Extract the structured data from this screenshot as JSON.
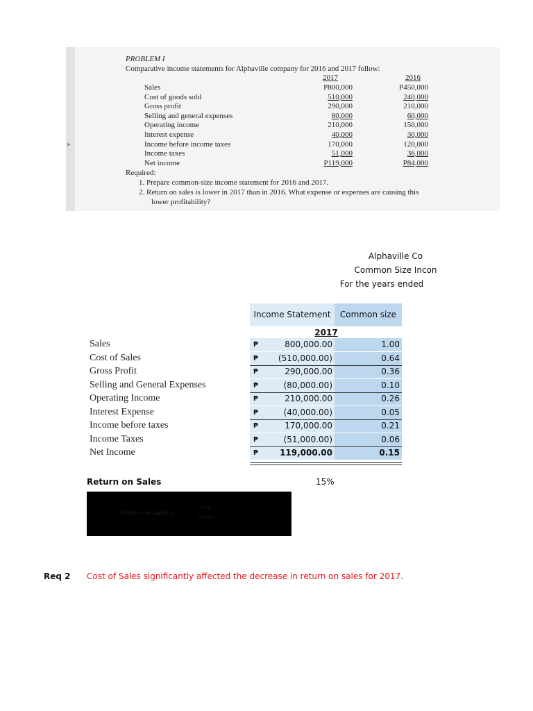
{
  "problem": {
    "title": "PROBLEM I",
    "intro": "Comparative income statements for Alphaville company for 2016 and 2017 follow:",
    "col_2017": "2017",
    "col_2016": "2016",
    "rows": [
      {
        "label": "Sales",
        "y2017": "P800,000",
        "y2016": "P450,000"
      },
      {
        "label": "Cost of goods sold",
        "y2017": "510,000",
        "y2016": "240,000"
      },
      {
        "label": "Gross profit",
        "y2017": "290,000",
        "y2016": "210,000"
      },
      {
        "label": "Selling and general expenses",
        "y2017": "80,000",
        "y2016": "60,000"
      },
      {
        "label": "Operating income",
        "y2017": "210,000",
        "y2016": "150,000"
      },
      {
        "label": "Interest expense",
        "y2017": "40,000",
        "y2016": "30,000"
      },
      {
        "label": "Income before income taxes",
        "y2017": "170,000",
        "y2016": "120,000"
      },
      {
        "label": "Income taxes",
        "y2017": "51,000",
        "y2016": "36,000"
      },
      {
        "label": "Net income",
        "y2017": "P119,000",
        "y2016": "P84,000"
      }
    ],
    "required": "Required:",
    "req1": "1.  Prepare common-size income statement for 2016 and 2017.",
    "req2a": "2.  Return on sales is lower in 2017 than in 2016.  What expense or expenses are causing this",
    "req2b": "lower profitability?"
  },
  "heading": {
    "company": "Alphaville Co",
    "title": "Common Size Incon",
    "period": "For the years ended"
  },
  "table": {
    "col_income": "Income Statement",
    "col_common": "Common size",
    "year": "2017",
    "currency": "₱",
    "rows": [
      {
        "label": "Sales",
        "amount": "800,000.00",
        "common": "1.00"
      },
      {
        "label": "Cost of Sales",
        "amount": "(510,000.00)",
        "common": "0.64"
      },
      {
        "label": "Gross Profit",
        "amount": "290,000.00",
        "common": "0.36"
      },
      {
        "label": "Selling and General Expenses",
        "amount": "(80,000.00)",
        "common": "0.10"
      },
      {
        "label": "Operating Income",
        "amount": "210,000.00",
        "common": "0.26"
      },
      {
        "label": "Interest Expense",
        "amount": "(40,000.00)",
        "common": "0.05"
      },
      {
        "label": "Income before taxes",
        "amount": "170,000.00",
        "common": "0.21"
      },
      {
        "label": "Income Taxes",
        "amount": "(51,000.00)",
        "common": "0.06"
      },
      {
        "label": "Net Income",
        "amount": "119,000.00",
        "common": "0.15"
      }
    ]
  },
  "ros": {
    "label": "Return on Sales",
    "value": "15%",
    "formula_left": "Return on sales =",
    "formula_num": "Profit",
    "formula_den": "Net sales"
  },
  "req2": {
    "label": "Req 2",
    "answer": "Cost of Sales significantly affected the decrease in return on sales for 2017."
  }
}
